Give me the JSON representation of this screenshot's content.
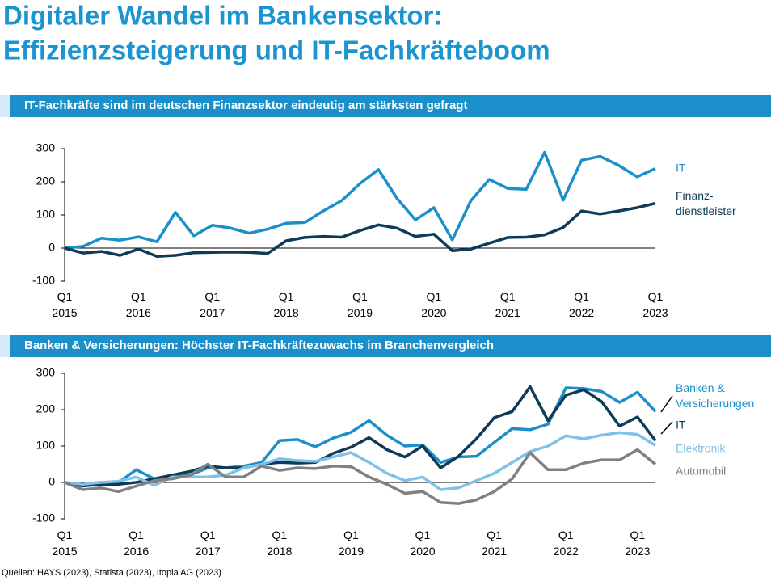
{
  "header": {
    "title": [
      "Digitaler Wandel im Bankensektor:",
      "Effizienzsteigerung und IT-Fachkräfteboom"
    ]
  },
  "source": "Quellen: HAYS (2023), Statista (2023), Itopia AG (2023)",
  "chart_data": [
    {
      "type": "line",
      "title": "IT-Fachkräfte sind im deutschen Finanzsektor eindeutig am stärksten gefragt",
      "categories": [
        "Q1\n2015",
        null,
        null,
        null,
        "Q1\n2016",
        null,
        null,
        null,
        "Q1\n2017",
        null,
        null,
        null,
        "Q1\n2018",
        null,
        null,
        null,
        "Q1\n2019",
        null,
        null,
        null,
        "Q1\n2020",
        null,
        null,
        null,
        "Q1\n2021",
        null,
        null,
        null,
        "Q1\n2022",
        null,
        null,
        null,
        "Q1\n2023"
      ],
      "ylim": [
        -100,
        300
      ],
      "yticks": [
        -100,
        0,
        100,
        200,
        300
      ],
      "grid": false,
      "series": [
        {
          "name": "IT",
          "color": "#1a8fc9",
          "values": [
            0,
            5,
            30,
            24,
            34,
            19,
            108,
            37,
            69,
            60,
            45,
            57,
            75,
            77,
            112,
            143,
            195,
            237,
            150,
            85,
            122,
            25,
            143,
            207,
            180,
            177,
            289,
            145,
            265,
            277,
            250,
            215,
            240
          ]
        },
        {
          "name": "Finanz-\ndienstleister",
          "color": "#0d3b58",
          "values": [
            0,
            -15,
            -10,
            -22,
            -3,
            -25,
            -22,
            -14,
            -13,
            -12,
            -13,
            -16,
            22,
            32,
            35,
            33,
            53,
            70,
            60,
            35,
            42,
            -8,
            -3,
            15,
            32,
            33,
            40,
            62,
            112,
            103,
            112,
            122,
            135
          ]
        }
      ]
    },
    {
      "type": "line",
      "title": "Banken & Versicherungen: Höchster IT-Fachkräftezuwachs im Branchenvergleich",
      "categories": [
        "Q1\n2015",
        null,
        null,
        null,
        "Q1\n2016",
        null,
        null,
        null,
        "Q1\n2017",
        null,
        null,
        null,
        "Q1\n2018",
        null,
        null,
        null,
        "Q1\n2019",
        null,
        null,
        null,
        "Q1\n2020",
        null,
        null,
        null,
        "Q1\n2021",
        null,
        null,
        null,
        "Q1\n2022",
        null,
        null,
        null,
        "Q1\n2023",
        null
      ],
      "ylim": [
        -100,
        300
      ],
      "yticks": [
        -100,
        0,
        100,
        200,
        300
      ],
      "grid": false,
      "series": [
        {
          "name": "Banken &\nVersicherungen",
          "color": "#1a8fc9",
          "values": [
            0,
            -5,
            0,
            0,
            35,
            10,
            15,
            20,
            40,
            40,
            45,
            55,
            115,
            118,
            98,
            122,
            138,
            170,
            130,
            100,
            103,
            55,
            70,
            72,
            110,
            148,
            145,
            160,
            260,
            258,
            250,
            220,
            248,
            195
          ]
        },
        {
          "name": "IT",
          "color": "#0d3b58",
          "values": [
            0,
            -10,
            -5,
            -5,
            0,
            10,
            20,
            30,
            45,
            40,
            40,
            50,
            55,
            53,
            55,
            80,
            97,
            123,
            90,
            70,
            100,
            40,
            72,
            120,
            178,
            195,
            263,
            170,
            240,
            255,
            222,
            155,
            180,
            115
          ]
        },
        {
          "name": "Elektronik",
          "color": "#7fc1e8",
          "values": [
            0,
            -5,
            0,
            3,
            15,
            -8,
            15,
            15,
            15,
            20,
            40,
            50,
            65,
            60,
            58,
            70,
            82,
            55,
            25,
            5,
            15,
            -20,
            -15,
            5,
            25,
            55,
            85,
            100,
            128,
            120,
            130,
            137,
            132,
            102
          ]
        },
        {
          "name": "Automobil",
          "color": "#808080",
          "values": [
            0,
            -20,
            -15,
            -25,
            -10,
            5,
            10,
            20,
            50,
            15,
            15,
            45,
            33,
            40,
            38,
            45,
            43,
            15,
            -5,
            -30,
            -25,
            -55,
            -58,
            -48,
            -25,
            10,
            82,
            35,
            35,
            53,
            62,
            62,
            90,
            50
          ]
        }
      ]
    }
  ]
}
